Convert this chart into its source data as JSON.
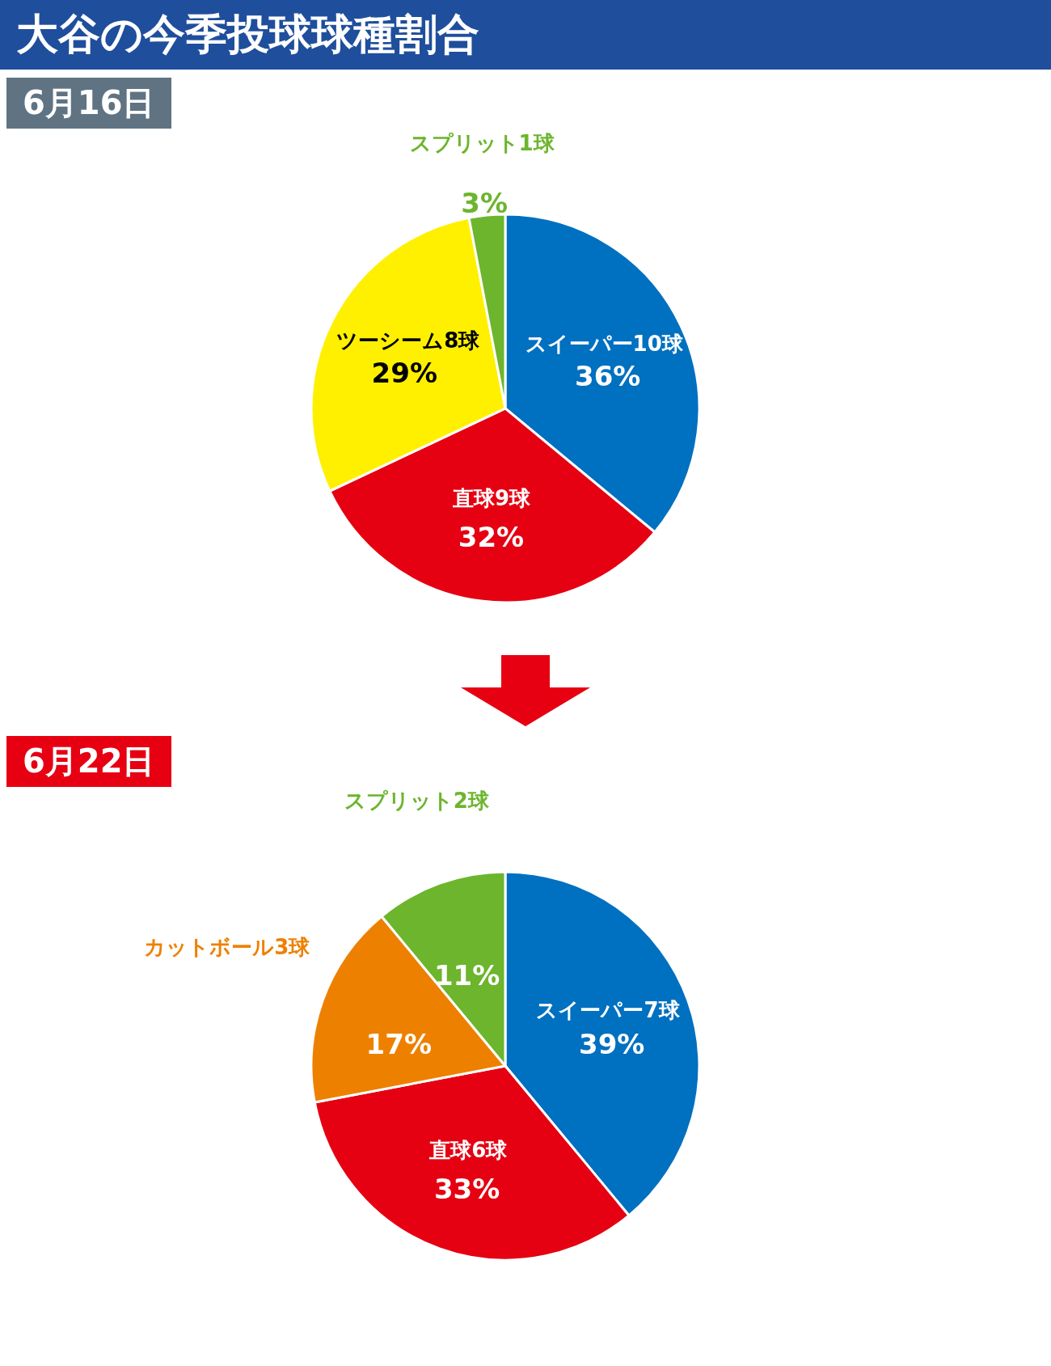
{
  "chart_data": [
    {
      "type": "pie",
      "title": "大谷の今季投球球種割合",
      "subtitle": "6月16日",
      "categories": [
        "スイーパー10球",
        "直球9球",
        "ツーシーム8球",
        "スプリット1球"
      ],
      "values": [
        36,
        32,
        29,
        3
      ],
      "value_labels": [
        "36%",
        "32%",
        "29%",
        "3%"
      ],
      "colors": [
        "#0070c0",
        "#e50012",
        "#fff000",
        "#6cb52d"
      ],
      "legend": false
    },
    {
      "type": "pie",
      "subtitle": "6月22日",
      "categories": [
        "スイーパー7球",
        "直球6球",
        "カットボール3球",
        "スプリット2球"
      ],
      "values": [
        39,
        33,
        17,
        11
      ],
      "value_labels": [
        "39%",
        "33%",
        "17%",
        "11%"
      ],
      "colors": [
        "#0070c0",
        "#e50012",
        "#ee8000",
        "#6cb52d"
      ],
      "legend": false
    }
  ]
}
